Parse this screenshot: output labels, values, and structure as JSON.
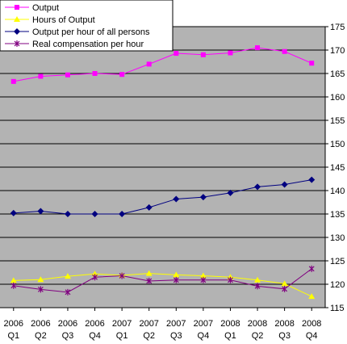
{
  "chart_data": {
    "type": "line",
    "categories": [
      [
        "2006",
        "Q1"
      ],
      [
        "2006",
        "Q2"
      ],
      [
        "2006",
        "Q3"
      ],
      [
        "2006",
        "Q4"
      ],
      [
        "2007",
        "Q1"
      ],
      [
        "2007",
        "Q2"
      ],
      [
        "2007",
        "Q3"
      ],
      [
        "2007",
        "Q4"
      ],
      [
        "2008",
        "Q1"
      ],
      [
        "2008",
        "Q2"
      ],
      [
        "2008",
        "Q3"
      ],
      [
        "2008",
        "Q4"
      ]
    ],
    "ylim": [
      115,
      175
    ],
    "yticks": [
      115,
      120,
      125,
      130,
      135,
      140,
      145,
      150,
      155,
      160,
      165,
      170,
      175
    ],
    "y_axis_side": "right",
    "grid": true,
    "legend_placement": "top-left",
    "plot_background": "#b3b3b3",
    "series": [
      {
        "name": "Output",
        "color": "#ff00ff",
        "marker": "square",
        "values": [
          163.3,
          164.4,
          164.7,
          165.0,
          164.8,
          167.0,
          169.3,
          169.0,
          169.4,
          170.5,
          169.7,
          167.2
        ]
      },
      {
        "name": "Hours of Output",
        "color": "#ffff00",
        "marker": "triangle",
        "values": [
          120.8,
          121.0,
          121.7,
          122.2,
          121.9,
          122.3,
          122.0,
          121.8,
          121.5,
          120.9,
          120.1,
          117.4
        ]
      },
      {
        "name": "Output per hour of all persons",
        "color": "#000080",
        "marker": "diamond",
        "values": [
          135.2,
          135.6,
          135.0,
          135.0,
          135.0,
          136.4,
          138.2,
          138.6,
          139.5,
          140.8,
          141.3,
          142.3
        ]
      },
      {
        "name": "Real compensation per hour",
        "color": "#800080",
        "marker": "star",
        "values": [
          119.7,
          118.9,
          118.3,
          121.5,
          121.8,
          120.7,
          120.9,
          120.9,
          120.9,
          119.6,
          119.0,
          123.3
        ]
      }
    ]
  }
}
